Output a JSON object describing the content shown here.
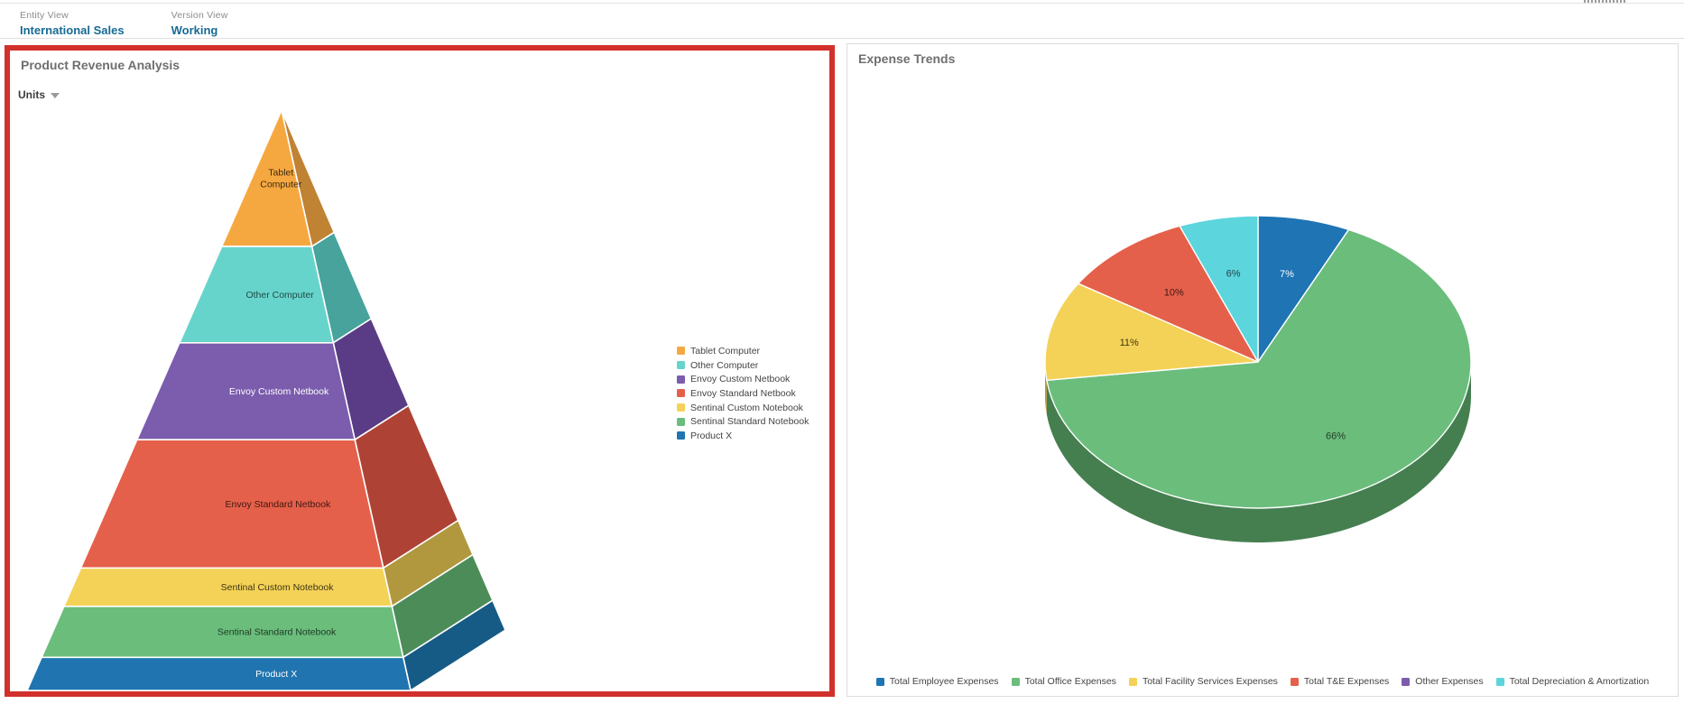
{
  "pov_bar": {
    "items": [
      {
        "label": "Entity View",
        "value": "International Sales"
      },
      {
        "label": "Version View",
        "value": "Working"
      }
    ],
    "value_color": "#176a94"
  },
  "left_panel": {
    "title": "Product Revenue Analysis",
    "measure_selector": "Units",
    "highlight_color": "#d2302c"
  },
  "right_panel": {
    "title": "Expense Trends"
  },
  "chart_data": [
    {
      "type": "pyramid",
      "title": "Product Revenue Analysis",
      "measure": "Units",
      "legend_position": "right",
      "series": [
        {
          "name": "Tablet Computer",
          "label_lines": [
            "Tablet",
            "Computer"
          ],
          "height_fraction": 0.235,
          "color": "#f6a840",
          "side_color": "#c08233",
          "label_color": "#3b2c12"
        },
        {
          "name": "Other Computer",
          "label_lines": [
            "Other Computer"
          ],
          "height_fraction": 0.166,
          "color": "#67d4cc",
          "side_color": "#47a39c",
          "label_color": "#1f4a46"
        },
        {
          "name": "Envoy Custom Netbook",
          "label_lines": [
            "Envoy Custom Netbook"
          ],
          "height_fraction": 0.167,
          "color": "#7b5cad",
          "side_color": "#5a3c86",
          "label_color": "#ffffff"
        },
        {
          "name": "Envoy Standard Netbook",
          "label_lines": [
            "Envoy Standard Netbook"
          ],
          "height_fraction": 0.221,
          "color": "#e5604a",
          "side_color": "#ae4335",
          "label_color": "#3d1712"
        },
        {
          "name": "Sentinal Custom Notebook",
          "label_lines": [
            "Sentinal Custom Notebook"
          ],
          "height_fraction": 0.066,
          "color": "#f4d258",
          "side_color": "#b1983f",
          "label_color": "#3e3512"
        },
        {
          "name": "Sentinal Standard Notebook",
          "label_lines": [
            "Sentinal Standard Notebook"
          ],
          "height_fraction": 0.088,
          "color": "#6bbd7c",
          "side_color": "#4c8c59",
          "label_color": "#1c3a23"
        },
        {
          "name": "Product X",
          "label_lines": [
            "Product X"
          ],
          "height_fraction": 0.057,
          "color": "#2074b0",
          "side_color": "#155b85",
          "label_color": "#ffffff"
        }
      ]
    },
    {
      "type": "pie",
      "title": "Expense Trends",
      "legend_position": "bottom",
      "slices": [
        {
          "name": "Total Employee Expenses",
          "value": 7,
          "label": "7%",
          "color": "#1f74b4",
          "side_color": "#15557f",
          "label_color": "#ffffff"
        },
        {
          "name": "Total Office Expenses",
          "value": 66,
          "label": "66%",
          "color": "#6bbd7c",
          "side_color": "#457f50",
          "label_color": "#243b28"
        },
        {
          "name": "Total Facility Services Expenses",
          "value": 11,
          "label": "11%",
          "color": "#f4d258",
          "side_color": "#b1983f",
          "label_color": "#3e3512"
        },
        {
          "name": "Total T&E Expenses",
          "value": 10,
          "label": "10%",
          "color": "#e5604a",
          "side_color": "#a8402f",
          "label_color": "#3d1712"
        },
        {
          "name": "Other Expenses",
          "value": 0,
          "label": "",
          "color": "#7b5cad",
          "side_color": "#5a3c86",
          "label_color": "#ffffff"
        },
        {
          "name": "Total Depreciation & Amortization",
          "value": 6,
          "label": "6%",
          "color": "#5cd5dd",
          "side_color": "#3f9aa1",
          "label_color": "#1d4549"
        }
      ]
    }
  ]
}
